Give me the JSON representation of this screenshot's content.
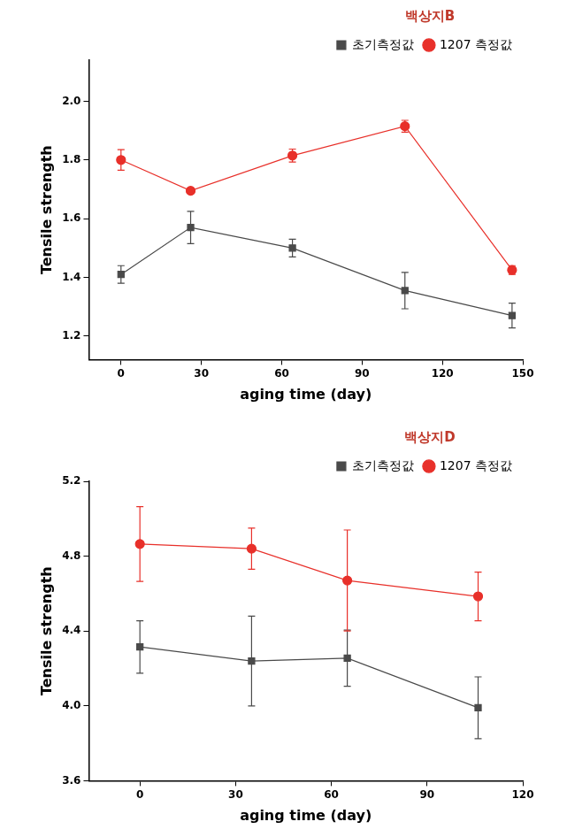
{
  "chart_data": [
    {
      "type": "line",
      "legend_title": "백상지B",
      "x_label": "aging time (day)",
      "y_label": "Tensile strength",
      "x": [
        0,
        26,
        64,
        106,
        146
      ],
      "series": [
        {
          "name": "초기측정값",
          "color": "#4a4a4a",
          "marker": "square",
          "line_style": "solid",
          "values": [
            1.41,
            1.57,
            1.5,
            1.355,
            1.27
          ],
          "errors": [
            0.03,
            0.055,
            0.03,
            0.062,
            0.042
          ]
        },
        {
          "name": "1207 측정값",
          "color": "#e8302a",
          "marker": "circle",
          "line_style": "solid",
          "values": [
            1.8,
            1.695,
            1.815,
            1.915,
            1.425
          ],
          "errors": [
            0.035,
            0.005,
            0.022,
            0.02,
            0.015
          ]
        }
      ],
      "xlim": [
        -12,
        150
      ],
      "xticks": [
        0,
        30,
        60,
        90,
        120,
        150
      ],
      "ylim": [
        1.12,
        2.14
      ],
      "yticks": [
        1.2,
        1.4,
        1.6,
        1.8,
        {
          "value": 2,
          "label": "2.0"
        }
      ],
      "grid": false,
      "legend": "upper right"
    },
    {
      "type": "line",
      "legend_title": "백상지D",
      "x_label": "aging time (day)",
      "y_label": "Tensile strength",
      "x": [
        0,
        35,
        65,
        106
      ],
      "series": [
        {
          "name": "초기측정값",
          "color": "#4a4a4a",
          "marker": "square",
          "line_style": "solid",
          "values": [
            4.315,
            4.24,
            4.255,
            3.99
          ],
          "errors": [
            0.14,
            0.24,
            0.15,
            0.165
          ]
        },
        {
          "name": "1207 측정값",
          "color": "#e8302a",
          "marker": "circle",
          "line_style": "solid",
          "values": [
            4.865,
            4.84,
            4.67,
            4.585
          ],
          "errors": [
            0.2,
            0.11,
            0.27,
            0.13
          ]
        }
      ],
      "xlim": [
        -16,
        120
      ],
      "xticks": [
        0,
        30,
        60,
        90,
        120
      ],
      "ylim": [
        3.6,
        5.2
      ],
      "yticks": [
        3.6,
        {
          "value": 4,
          "label": "4.0"
        },
        4.4,
        4.8,
        5.2
      ],
      "grid": false,
      "legend": "upper right"
    }
  ]
}
